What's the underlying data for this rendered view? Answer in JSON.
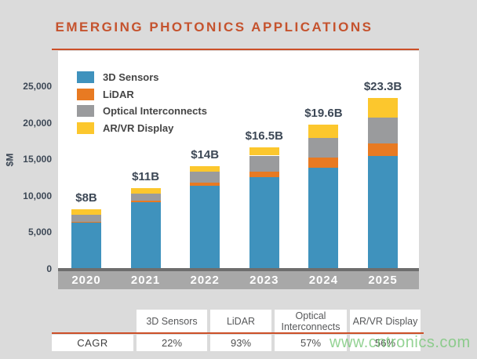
{
  "title": "EMERGING PHOTONICS APPLICATIONS",
  "colors": {
    "accent_orange": "#c5532e",
    "rule_orange": "#cc4f28",
    "background": "#dbdbdb",
    "plot_background": "#ffffff",
    "axis_band_gray": "#a8a8a8",
    "axis_line_gray": "#6e6e6e",
    "text_dark_slate": "#3d4856",
    "series_blue": "#3f92bd",
    "series_orange": "#e87a22",
    "series_gray": "#9a9b9d",
    "series_yellow": "#fcc72d",
    "watermark_green": "#76c776"
  },
  "chart_data": {
    "type": "bar",
    "stacked": true,
    "title": "EMERGING PHOTONICS APPLICATIONS",
    "categories": [
      "2020",
      "2021",
      "2022",
      "2023",
      "2024",
      "2025"
    ],
    "series": [
      {
        "name": "3D Sensors",
        "color": "#3f92bd",
        "values": [
          6200,
          9000,
          11300,
          12500,
          13700,
          15300
        ]
      },
      {
        "name": "LiDAR",
        "color": "#e87a22",
        "values": [
          100,
          200,
          400,
          700,
          1400,
          1800
        ]
      },
      {
        "name": "Optical Interconnects",
        "color": "#9a9b9d",
        "values": [
          1000,
          1000,
          1500,
          2200,
          2700,
          3500
        ]
      },
      {
        "name": "AR/VR Display",
        "color": "#fcc72d",
        "values": [
          700,
          800,
          800,
          1100,
          1800,
          2700
        ]
      }
    ],
    "totals": [
      8000,
      11000,
      14000,
      16500,
      19600,
      23300
    ],
    "total_labels": [
      "$8B",
      "$11B",
      "$14B",
      "$16.5B",
      "$19.6B",
      "$23.3B"
    ],
    "ylabel": "$M",
    "yticks": {
      "values": [
        0,
        5000,
        10000,
        15000,
        20000,
        25000
      ],
      "labels": [
        "0",
        "5,000",
        "10,000",
        "15,000",
        "20,000",
        "25,000"
      ]
    },
    "ylim": [
      0,
      29700
    ],
    "grid": false,
    "legend_position": "upper-left-inside"
  },
  "table": {
    "headers": [
      "3D Sensors",
      "LiDAR",
      "Optical Interconnects",
      "AR/VR Display"
    ],
    "row_label": "CAGR",
    "values": [
      "22%",
      "93%",
      "57%",
      "56%"
    ]
  },
  "watermark": "www.cntronics.com"
}
